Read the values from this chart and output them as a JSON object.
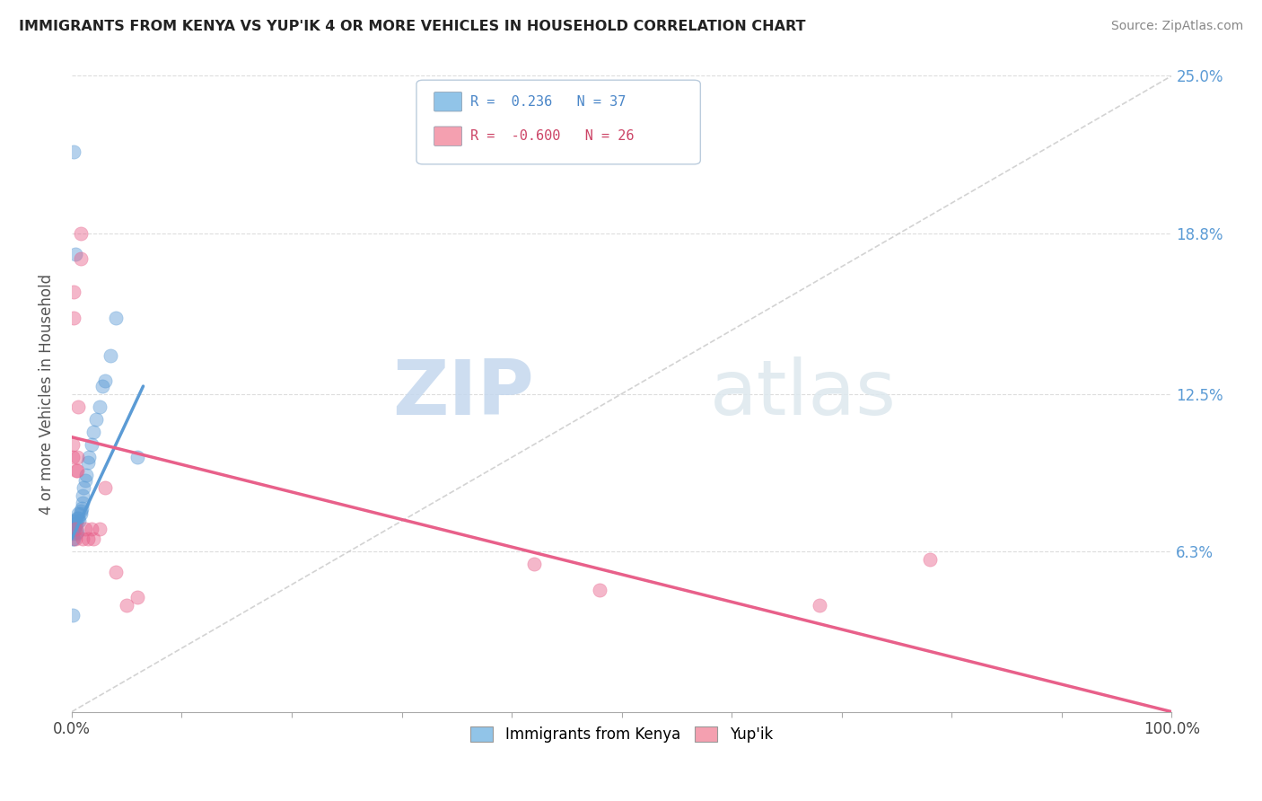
{
  "title": "IMMIGRANTS FROM KENYA VS YUP'IK 4 OR MORE VEHICLES IN HOUSEHOLD CORRELATION CHART",
  "source": "Source: ZipAtlas.com",
  "ylabel": "4 or more Vehicles in Household",
  "xmin": 0.0,
  "xmax": 1.0,
  "ymin": 0.0,
  "ymax": 0.25,
  "yticks": [
    0.063,
    0.125,
    0.188,
    0.25
  ],
  "ytick_labels": [
    "6.3%",
    "12.5%",
    "18.8%",
    "25.0%"
  ],
  "xtick_positions": [
    0.0,
    0.1,
    0.2,
    0.3,
    0.4,
    0.5,
    0.6,
    0.7,
    0.8,
    0.9,
    1.0
  ],
  "xtick_labels_ends": [
    "0.0%",
    "100.0%"
  ],
  "legend_entries": [
    {
      "label": "Immigrants from Kenya",
      "color": "#91c4e8",
      "R": "0.236",
      "N": "37"
    },
    {
      "label": "Yup'ik",
      "color": "#f4a0b0",
      "R": "-0.600",
      "N": "26"
    }
  ],
  "background_color": "#ffffff",
  "kenya_x": [
    0.001,
    0.001,
    0.001,
    0.001,
    0.002,
    0.002,
    0.003,
    0.003,
    0.004,
    0.004,
    0.005,
    0.005,
    0.006,
    0.006,
    0.007,
    0.008,
    0.008,
    0.009,
    0.01,
    0.01,
    0.011,
    0.012,
    0.013,
    0.015,
    0.016,
    0.018,
    0.02,
    0.022,
    0.025,
    0.028,
    0.03,
    0.035,
    0.04,
    0.002,
    0.003,
    0.06,
    0.001
  ],
  "kenya_y": [
    0.068,
    0.07,
    0.072,
    0.075,
    0.068,
    0.072,
    0.073,
    0.075,
    0.07,
    0.074,
    0.071,
    0.076,
    0.076,
    0.078,
    0.075,
    0.078,
    0.079,
    0.08,
    0.082,
    0.085,
    0.088,
    0.091,
    0.093,
    0.098,
    0.1,
    0.105,
    0.11,
    0.115,
    0.12,
    0.128,
    0.13,
    0.14,
    0.155,
    0.22,
    0.18,
    0.1,
    0.038
  ],
  "yupik_x": [
    0.001,
    0.001,
    0.002,
    0.002,
    0.003,
    0.003,
    0.004,
    0.005,
    0.005,
    0.006,
    0.008,
    0.008,
    0.01,
    0.012,
    0.015,
    0.018,
    0.02,
    0.025,
    0.03,
    0.04,
    0.05,
    0.06,
    0.42,
    0.48,
    0.68,
    0.78
  ],
  "yupik_y": [
    0.1,
    0.105,
    0.155,
    0.165,
    0.068,
    0.072,
    0.095,
    0.095,
    0.1,
    0.12,
    0.178,
    0.188,
    0.068,
    0.072,
    0.068,
    0.072,
    0.068,
    0.072,
    0.088,
    0.055,
    0.042,
    0.045,
    0.058,
    0.048,
    0.042,
    0.06
  ],
  "kenya_line_x": [
    0.0,
    0.065
  ],
  "kenya_line_y": [
    0.068,
    0.128
  ],
  "yupik_line_x": [
    0.0,
    1.0
  ],
  "yupik_line_y": [
    0.108,
    0.0
  ],
  "kenya_color": "#5b9bd5",
  "yupik_color": "#e8608a",
  "trend_line_x": [
    0.0,
    1.0
  ],
  "trend_line_y": [
    0.0,
    0.25
  ]
}
